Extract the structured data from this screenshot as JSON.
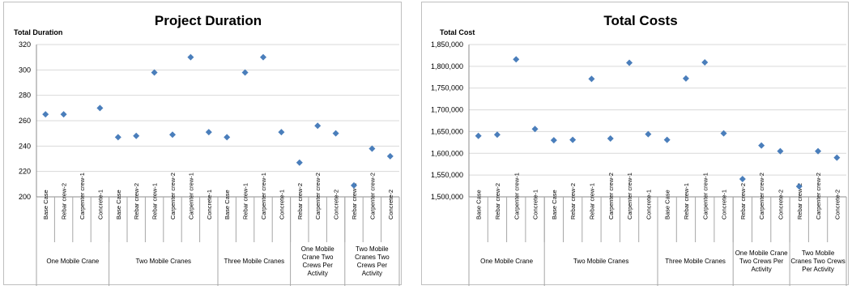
{
  "chart_data": [
    {
      "type": "scatter",
      "title": "Project Duration",
      "ylabel": "Total Duration",
      "ylim": [
        200,
        320
      ],
      "yticks": [
        "200",
        "220",
        "240",
        "260",
        "280",
        "300",
        "320"
      ],
      "grid": true,
      "marker_color": "#4a7ebb",
      "groups": [
        {
          "name": "One Mobile Crane",
          "categories": [
            "Base Case",
            "Rebar crew-2",
            "Carpenter crew-1",
            "Concrete-1"
          ],
          "values": [
            265,
            265,
            null,
            270
          ]
        },
        {
          "name": "Two Mobile Cranes",
          "categories": [
            "Base Case",
            "Rebar crew-2",
            "Rebar crew-1",
            "Carpenter crew-2",
            "Carpenter crew-1",
            "Concrete-1"
          ],
          "values": [
            247,
            248,
            298,
            249,
            310,
            251
          ]
        },
        {
          "name": "Three Mobile Cranes",
          "categories": [
            "Base Case",
            "Rebar crew-1",
            "Carpenter crew-1",
            "Concrete-1"
          ],
          "values": [
            247,
            298,
            310,
            251
          ]
        },
        {
          "name": "One Mobile Crane Two Crews Per Activity",
          "categories": [
            "Rebar crew-2",
            "Carpenter crew-2",
            "Concrete-2"
          ],
          "values": [
            227,
            256,
            250
          ]
        },
        {
          "name": "Two Mobile Cranes Two Crews Per Activity",
          "categories": [
            "Rebar crew-2",
            "Carpenter crew-2",
            "Concrete-2"
          ],
          "values": [
            209,
            238,
            232
          ]
        }
      ]
    },
    {
      "type": "scatter",
      "title": "Total Costs",
      "ylabel": "Total Cost",
      "ylim": [
        1500000,
        1850000
      ],
      "yticks": [
        "1,500,000",
        "1,550,000",
        "1,600,000",
        "1,650,000",
        "1,700,000",
        "1,750,000",
        "1,800,000",
        "1,850,000"
      ],
      "grid": true,
      "marker_color": "#4a7ebb",
      "groups": [
        {
          "name": "One Mobile Crane",
          "categories": [
            "Base Case",
            "Rebar crew-2",
            "Carpenter crew-1",
            "Concrete-1"
          ],
          "values": [
            1640000,
            1643000,
            1816000,
            1656000
          ]
        },
        {
          "name": "Two Mobile Cranes",
          "categories": [
            "Base Case",
            "Rebar crew-2",
            "Rebar crew-1",
            "Carpenter crew-2",
            "Carpenter crew-1",
            "Concrete-1"
          ],
          "values": [
            1630000,
            1631000,
            1771000,
            1634000,
            1808000,
            1644000
          ]
        },
        {
          "name": "Three Mobile Cranes",
          "categories": [
            "Base Case",
            "Rebar crew-1",
            "Carpenter crew-1",
            "Concrete-1"
          ],
          "values": [
            1631000,
            1772000,
            1809000,
            1646000
          ]
        },
        {
          "name": "One Mobile Crane Two Crews Per Activity",
          "categories": [
            "Rebar crew-2",
            "Carpenter crew-2",
            "Concrete-2"
          ],
          "values": [
            1541000,
            1618000,
            1605000
          ]
        },
        {
          "name": "Two Mobile Cranes Two Crews Per Activity",
          "categories": [
            "Rebar crew-2",
            "Carpenter crew-2",
            "Concrete-2"
          ],
          "values": [
            1524000,
            1605000,
            1590000
          ]
        }
      ]
    }
  ]
}
